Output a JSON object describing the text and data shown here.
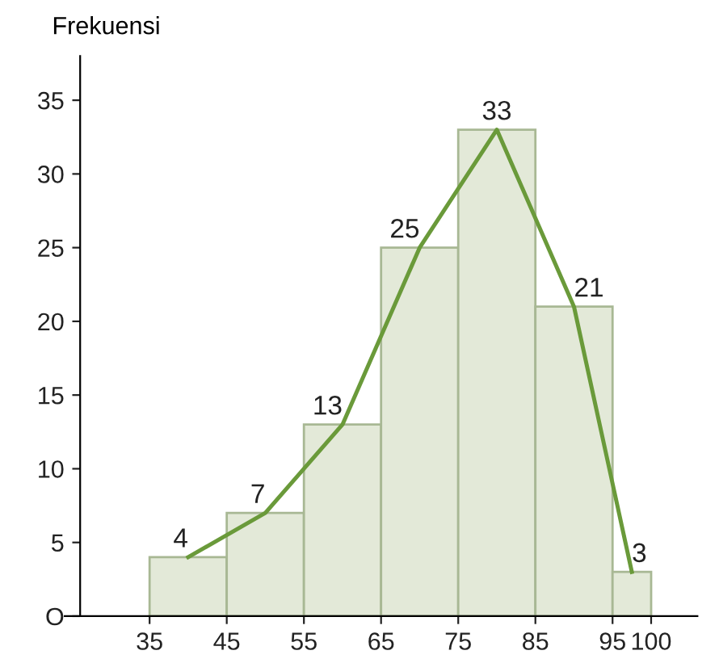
{
  "chart_data": {
    "type": "histogram",
    "ylabel": "Frekuensi",
    "bins": [
      35,
      45,
      55,
      65,
      75,
      85,
      95,
      100
    ],
    "values": [
      4,
      7,
      13,
      25,
      33,
      21,
      3
    ],
    "color": "#e3e9d8",
    "series": [
      {
        "type": "line",
        "color": "#6a9a3a",
        "x": [
          40,
          50,
          60,
          70,
          80,
          90,
          97.5
        ],
        "values": [
          4,
          7,
          13,
          25,
          33,
          21,
          3
        ],
        "value_labels": [
          "4",
          "7",
          "13",
          "25",
          "33",
          "21",
          "3"
        ]
      }
    ],
    "xlim": [
      24,
      106
    ],
    "xticks": [
      35,
      45,
      55,
      65,
      75,
      85,
      95,
      100
    ],
    "ylim": [
      0,
      38
    ],
    "yticks": [
      {
        "value": 0,
        "label": "O"
      },
      5,
      10,
      15,
      20,
      25,
      30,
      35
    ],
    "grid": false,
    "legend": false,
    "marker": "none"
  }
}
